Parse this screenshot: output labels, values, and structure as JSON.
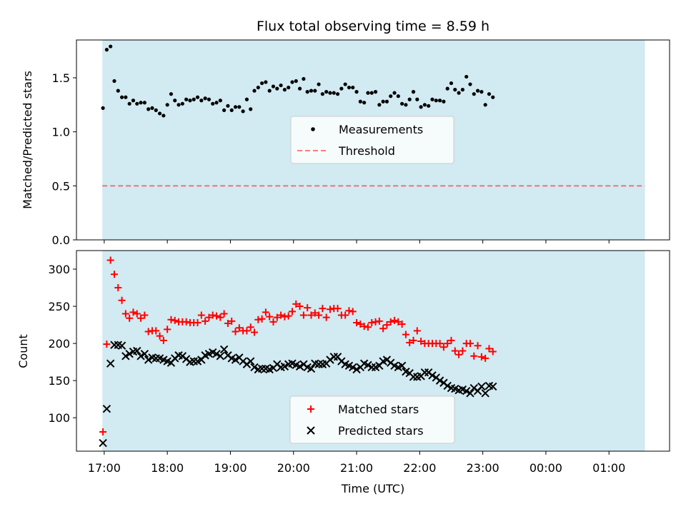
{
  "colors": {
    "background": "#ffffff",
    "shade": "#add8e6",
    "measurement": "#000000",
    "threshold": "#ff0000",
    "matched": "#ff0000",
    "predicted": "#000000"
  },
  "x_ticks": [
    "17:00",
    "18:00",
    "19:00",
    "20:00",
    "21:00",
    "22:00",
    "23:00",
    "00:00",
    "01:00"
  ],
  "chart_data": [
    {
      "type": "scatter",
      "title": "Flux total observing time = 8.59 h",
      "xlabel": "",
      "ylabel": "Matched/Predicted stars",
      "xlim": [
        -0.44,
        8.96
      ],
      "ylim": [
        0,
        1.85
      ],
      "yticks": [
        "0.0",
        "0.5",
        "1.0",
        "1.5"
      ],
      "yticks_values": [
        0,
        0.5,
        1.0,
        1.5
      ],
      "x_unit": "hours since 17:00 UTC",
      "observing_window": [
        -0.03,
        8.57
      ],
      "legend": {
        "position": "center",
        "entries": [
          "Measurements",
          "Threshold"
        ]
      },
      "threshold": 0.5,
      "series": [
        {
          "name": "Measurements",
          "x_start": -0.02,
          "x_step": 0.06,
          "values": [
            1.22,
            1.76,
            1.79,
            1.47,
            1.38,
            1.32,
            1.32,
            1.26,
            1.29,
            1.26,
            1.27,
            1.27,
            1.21,
            1.22,
            1.2,
            1.17,
            1.15,
            1.25,
            1.35,
            1.29,
            1.25,
            1.26,
            1.3,
            1.29,
            1.3,
            1.32,
            1.29,
            1.31,
            1.3,
            1.26,
            1.27,
            1.29,
            1.2,
            1.24,
            1.2,
            1.23,
            1.23,
            1.19,
            1.3,
            1.21,
            1.38,
            1.41,
            1.45,
            1.46,
            1.38,
            1.42,
            1.4,
            1.43,
            1.39,
            1.41,
            1.46,
            1.47,
            1.4,
            1.49,
            1.37,
            1.38,
            1.38,
            1.44,
            1.35,
            1.37,
            1.36,
            1.36,
            1.35,
            1.4,
            1.44,
            1.41,
            1.41,
            1.37,
            1.28,
            1.27,
            1.36,
            1.36,
            1.37,
            1.25,
            1.28,
            1.28,
            1.33,
            1.36,
            1.33,
            1.26,
            1.25,
            1.3,
            1.37,
            1.3,
            1.23,
            1.25,
            1.24,
            1.3,
            1.29,
            1.29,
            1.28,
            1.4,
            1.45,
            1.39,
            1.36,
            1.39,
            1.51,
            1.44,
            1.35,
            1.38,
            1.37,
            1.25,
            1.35,
            1.32
          ]
        }
      ]
    },
    {
      "type": "scatter",
      "title": "",
      "xlabel": "Time (UTC)",
      "ylabel": "Count",
      "xlim": [
        -0.44,
        8.96
      ],
      "ylim": [
        55,
        325
      ],
      "yticks": [
        "100",
        "150",
        "200",
        "250",
        "300"
      ],
      "yticks_values": [
        100,
        150,
        200,
        250,
        300
      ],
      "x_unit": "hours since 17:00 UTC",
      "observing_window": [
        -0.03,
        8.57
      ],
      "legend": {
        "position": "bottom-center",
        "entries": [
          "Matched stars",
          "Predicted stars"
        ]
      },
      "series": [
        {
          "name": "Matched stars",
          "marker": "+",
          "x_start": -0.02,
          "x_step": 0.06,
          "values": [
            81,
            199,
            312,
            293,
            275,
            258,
            240,
            234,
            242,
            240,
            234,
            238,
            216,
            217,
            217,
            210,
            204,
            219,
            232,
            231,
            229,
            229,
            229,
            228,
            228,
            228,
            238,
            230,
            235,
            238,
            237,
            235,
            240,
            227,
            230,
            216,
            221,
            217,
            217,
            222,
            215,
            232,
            233,
            242,
            236,
            229,
            235,
            238,
            236,
            237,
            243,
            253,
            250,
            238,
            248,
            238,
            241,
            238,
            247,
            235,
            246,
            247,
            247,
            238,
            238,
            244,
            243,
            228,
            226,
            223,
            222,
            228,
            229,
            230,
            220,
            225,
            229,
            231,
            229,
            226,
            212,
            201,
            204,
            217,
            203,
            200,
            200,
            200,
            200,
            200,
            195,
            200,
            204,
            190,
            185,
            190,
            200,
            200,
            183,
            197,
            182,
            180,
            193,
            189
          ]
        },
        {
          "name": "Predicted stars",
          "marker": "x",
          "x_start": -0.02,
          "x_step": 0.06,
          "values": [
            66,
            112,
            173,
            198,
            198,
            197,
            183,
            186,
            189,
            190,
            183,
            186,
            178,
            181,
            180,
            180,
            178,
            176,
            174,
            180,
            184,
            183,
            179,
            175,
            176,
            176,
            178,
            184,
            186,
            188,
            186,
            183,
            192,
            184,
            180,
            178,
            181,
            176,
            172,
            176,
            168,
            165,
            166,
            166,
            165,
            167,
            172,
            168,
            169,
            172,
            173,
            171,
            169,
            172,
            168,
            166,
            173,
            172,
            172,
            173,
            178,
            182,
            182,
            176,
            172,
            170,
            168,
            165,
            168,
            173,
            171,
            168,
            168,
            170,
            176,
            178,
            174,
            170,
            168,
            170,
            162,
            160,
            155,
            155,
            156,
            161,
            161,
            157,
            154,
            150,
            147,
            143,
            140,
            139,
            137,
            138,
            136,
            133,
            140,
            136,
            142,
            133,
            143,
            142
          ]
        }
      ]
    }
  ]
}
